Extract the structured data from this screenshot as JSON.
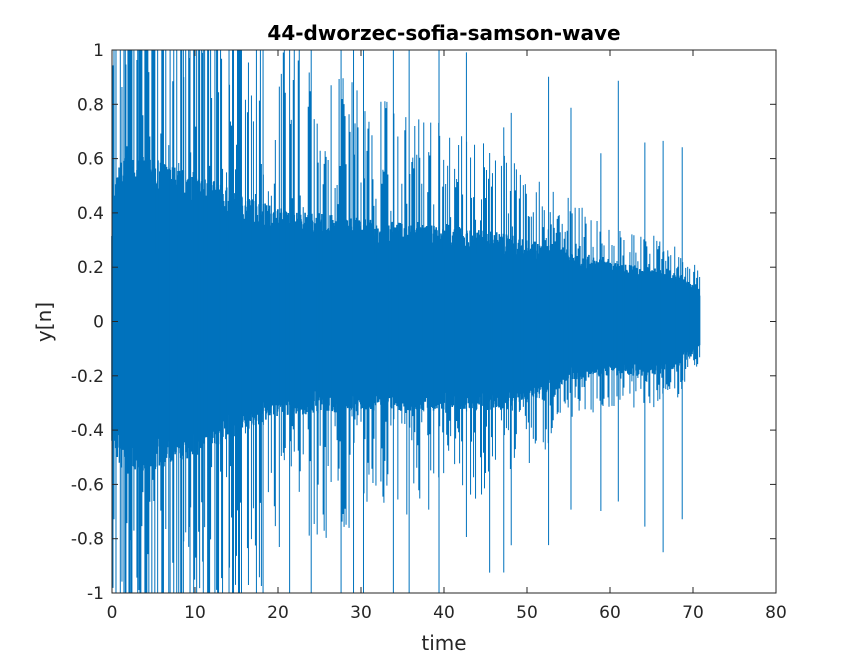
{
  "chart_data": {
    "type": "line",
    "title": "44-dworzec-sofia-samson-wave",
    "xlabel": "time",
    "ylabel": "y[n]",
    "xlim": [
      0,
      80
    ],
    "ylim": [
      -1,
      1
    ],
    "x_ticks": [
      "0",
      "10",
      "20",
      "30",
      "40",
      "50",
      "60",
      "70",
      "80"
    ],
    "y_ticks": [
      "-1",
      "-0.8",
      "-0.6",
      "-0.4",
      "-0.2",
      "0",
      "0.2",
      "0.4",
      "0.6",
      "0.8",
      "1"
    ],
    "grid": false,
    "line_color": "#0072bd",
    "series": [
      {
        "x_range": [
          0,
          70.8
        ],
        "envelope": {
          "t": [
            0,
            1,
            2,
            5,
            10,
            15,
            20,
            30,
            40,
            47,
            50,
            55,
            60,
            65,
            68,
            70.8
          ],
          "upper": [
            0.45,
            0.6,
            0.62,
            0.6,
            0.55,
            0.48,
            0.42,
            0.38,
            0.35,
            0.33,
            0.3,
            0.27,
            0.22,
            0.2,
            0.18,
            0.12
          ],
          "lower": [
            -0.45,
            -0.55,
            -0.55,
            -0.55,
            -0.5,
            -0.42,
            -0.35,
            -0.33,
            -0.33,
            -0.33,
            -0.3,
            -0.22,
            -0.2,
            -0.2,
            -0.18,
            -0.1
          ]
        },
        "peak_times": [
          1.0,
          1.6,
          2.3,
          3.1,
          4.0,
          4.8,
          5.5,
          6.2,
          7.0,
          7.8,
          8.6,
          9.4,
          10.2,
          11.0,
          12.4,
          14.1,
          15.6,
          18.2,
          21.4,
          24.0,
          27.6,
          29.1,
          30.3,
          33.9,
          35.8,
          39.4,
          42.7,
          45.5,
          47.2,
          48.1,
          52.6,
          55.3,
          58.9,
          61.0,
          64.2,
          66.4,
          68.7
        ]
      }
    ]
  }
}
